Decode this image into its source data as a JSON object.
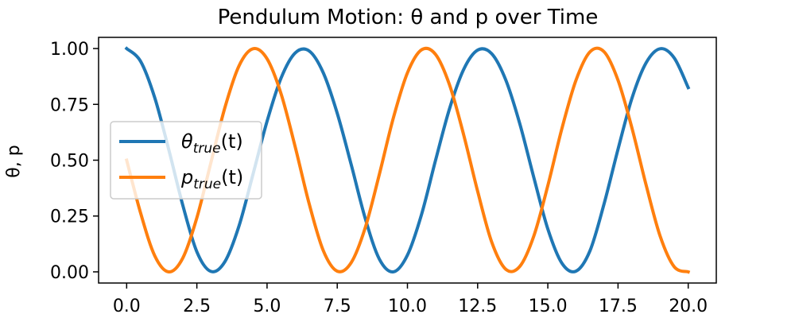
{
  "chart_data": {
    "type": "line",
    "title": "Pendulum Motion: θ and p over Time",
    "xlabel": "",
    "ylabel": "θ, p",
    "xlim": [
      -1.0,
      21.0
    ],
    "ylim": [
      -0.05,
      1.05
    ],
    "xticks": [
      "0.0",
      "2.5",
      "5.0",
      "7.5",
      "10.0",
      "12.5",
      "15.0",
      "17.5",
      "20.0"
    ],
    "yticks": [
      "0.00",
      "0.25",
      "0.50",
      "0.75",
      "1.00"
    ],
    "grid": false,
    "legend_position": "center-left",
    "x": [
      0.0,
      0.5,
      1.0,
      1.5,
      2.0,
      2.5,
      3.0,
      3.5,
      4.0,
      4.5,
      5.0,
      5.5,
      6.0,
      6.5,
      7.0,
      7.5,
      8.0,
      8.5,
      9.0,
      9.5,
      10.0,
      10.5,
      11.0,
      11.5,
      12.0,
      12.5,
      13.0,
      13.5,
      14.0,
      14.5,
      15.0,
      15.5,
      16.0,
      16.5,
      17.0,
      17.5,
      18.0,
      18.5,
      19.0,
      19.5,
      20.0
    ],
    "series": [
      {
        "name": "θ_true(t)",
        "label_main": "θ",
        "label_sub": "true",
        "label_tail": "(t)",
        "color": "#1f77b4",
        "values": [
          1.0,
          0.942,
          0.78,
          0.547,
          0.298,
          0.09,
          0.002,
          0.046,
          0.205,
          0.437,
          0.674,
          0.868,
          0.98,
          0.989,
          0.892,
          0.71,
          0.479,
          0.238,
          0.057,
          0.0,
          0.075,
          0.256,
          0.499,
          0.731,
          0.906,
          0.993,
          0.977,
          0.86,
          0.664,
          0.423,
          0.192,
          0.039,
          0.003,
          0.094,
          0.303,
          0.549,
          0.779,
          0.936,
          0.999,
          0.958,
          0.825
        ]
      },
      {
        "name": "p_true(t)",
        "label_main": "p",
        "label_sub": "true",
        "label_tail": "(t)",
        "color": "#ff7f0e",
        "values": [
          0.5,
          0.262,
          0.072,
          0.0,
          0.062,
          0.242,
          0.489,
          0.736,
          0.922,
          0.999,
          0.954,
          0.797,
          0.561,
          0.305,
          0.096,
          0.003,
          0.042,
          0.199,
          0.437,
          0.69,
          0.891,
          0.994,
          0.974,
          0.837,
          0.615,
          0.361,
          0.134,
          0.012,
          0.024,
          0.16,
          0.386,
          0.641,
          0.857,
          0.985,
          0.986,
          0.858,
          0.642,
          0.389,
          0.16,
          0.023,
          0.0
        ]
      }
    ]
  }
}
